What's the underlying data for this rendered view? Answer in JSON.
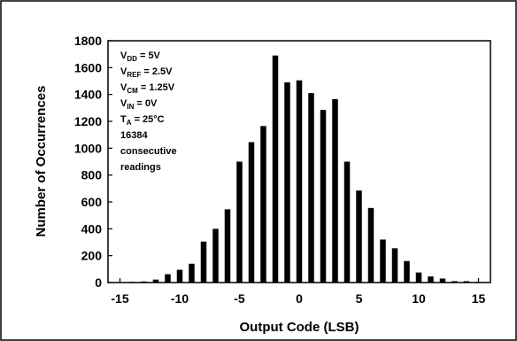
{
  "chart_data": {
    "type": "bar",
    "xlabel": "Output Code (LSB)",
    "ylabel": "Number of Occurrences",
    "xlim": [
      -16,
      16
    ],
    "ylim": [
      0,
      1800
    ],
    "xticks": [
      -15,
      -10,
      -5,
      0,
      5,
      10,
      15
    ],
    "yticks": [
      0,
      200,
      400,
      600,
      800,
      1000,
      1200,
      1400,
      1600,
      1800
    ],
    "grid": false,
    "x": [
      -15,
      -14,
      -13,
      -12,
      -11,
      -10,
      -9,
      -8,
      -7,
      -6,
      -5,
      -4,
      -3,
      -2,
      -1,
      0,
      1,
      2,
      3,
      4,
      5,
      6,
      7,
      8,
      9,
      10,
      11,
      12,
      13,
      14,
      15
    ],
    "values": [
      3,
      5,
      8,
      22,
      62,
      95,
      140,
      305,
      400,
      545,
      900,
      1045,
      1165,
      1690,
      1490,
      1505,
      1410,
      1285,
      1365,
      900,
      685,
      555,
      320,
      255,
      160,
      75,
      45,
      30,
      10,
      10,
      5
    ],
    "annotation": [
      {
        "main": "V",
        "sub": "DD",
        "rest": " = 5V"
      },
      {
        "main": "V",
        "sub": "REF",
        "rest": " = 2.5V"
      },
      {
        "main": "V",
        "sub": "CM",
        "rest": " = 1.25V"
      },
      {
        "main": "V",
        "sub": "IN",
        "rest": " = 0V"
      },
      {
        "main": "T",
        "sub": "A",
        "rest": " = 25°C"
      },
      {
        "main": "16384",
        "sub": "",
        "rest": ""
      },
      {
        "main": "consecutive",
        "sub": "",
        "rest": ""
      },
      {
        "main": "readings",
        "sub": "",
        "rest": ""
      }
    ],
    "bar_color": "#000000"
  }
}
